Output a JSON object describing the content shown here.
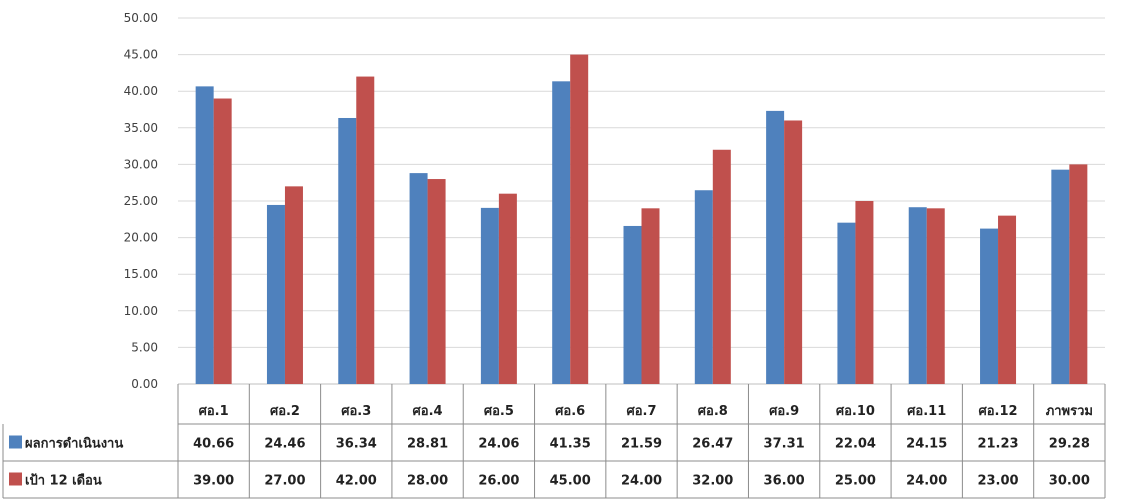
{
  "chart_data": {
    "type": "bar",
    "title": "",
    "xlabel": "",
    "ylabel": "",
    "ylim": [
      0,
      50
    ],
    "yticks": [
      "0.00",
      "5.00",
      "10.00",
      "15.00",
      "20.00",
      "25.00",
      "30.00",
      "35.00",
      "40.00",
      "45.00",
      "50.00"
    ],
    "grid": true,
    "legend": "data-table-left",
    "categories": [
      "ศอ.1",
      "ศอ.2",
      "ศอ.3",
      "ศอ.4",
      "ศอ.5",
      "ศอ.6",
      "ศอ.7",
      "ศอ.8",
      "ศอ.9",
      "ศอ.10",
      "ศอ.11",
      "ศอ.12",
      "ภาพรวม"
    ],
    "series": [
      {
        "name": "ผลการดำเนินงาน",
        "color": "#4f81bd",
        "values": [
          40.66,
          24.46,
          36.34,
          28.81,
          24.06,
          41.35,
          21.59,
          26.47,
          37.31,
          22.04,
          24.15,
          21.23,
          29.28
        ],
        "labels": [
          "40.66",
          "24.46",
          "36.34",
          "28.81",
          "24.06",
          "41.35",
          "21.59",
          "26.47",
          "37.31",
          "22.04",
          "24.15",
          "21.23",
          "29.28"
        ]
      },
      {
        "name": "เป้า 12 เดือน",
        "color": "#c0504d",
        "values": [
          39,
          27,
          42,
          28,
          26,
          45,
          24,
          32,
          36,
          25,
          24,
          23,
          30
        ],
        "labels": [
          "39.00",
          "27.00",
          "42.00",
          "28.00",
          "26.00",
          "45.00",
          "24.00",
          "32.00",
          "36.00",
          "25.00",
          "24.00",
          "23.00",
          "30.00"
        ]
      }
    ]
  }
}
